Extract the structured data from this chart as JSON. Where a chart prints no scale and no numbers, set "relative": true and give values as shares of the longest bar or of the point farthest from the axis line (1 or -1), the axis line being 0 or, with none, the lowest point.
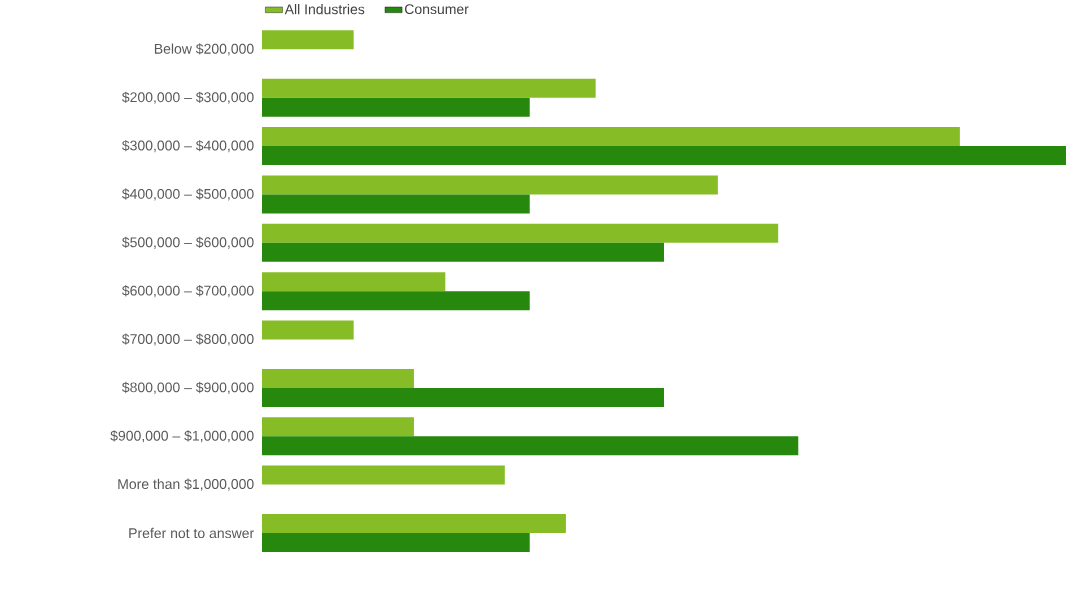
{
  "chart_data": {
    "type": "bar",
    "orientation": "horizontal",
    "relative": true,
    "legend": "top",
    "categories": [
      "Below $200,000",
      "$200,000 – $300,000",
      "$300,000 – $400,000",
      "$400,000 – $500,000",
      "$500,000 – $600,000",
      "$600,000 – $700,000",
      "$700,000 – $800,000",
      "$800,000 – $900,000",
      "$900,000 – $1,000,000",
      "More than $1,000,000",
      "Prefer not to answer"
    ],
    "series": [
      {
        "name": "All Industries",
        "color": "#86bc25",
        "values": [
          0.114,
          0.415,
          0.868,
          0.567,
          0.642,
          0.228,
          0.114,
          0.189,
          0.189,
          0.302,
          0.378
        ]
      },
      {
        "name": "Consumer",
        "color": "#26890d",
        "values": [
          null,
          0.333,
          1,
          0.333,
          0.5,
          0.333,
          null,
          0.5,
          0.667,
          null,
          0.333
        ]
      }
    ]
  }
}
